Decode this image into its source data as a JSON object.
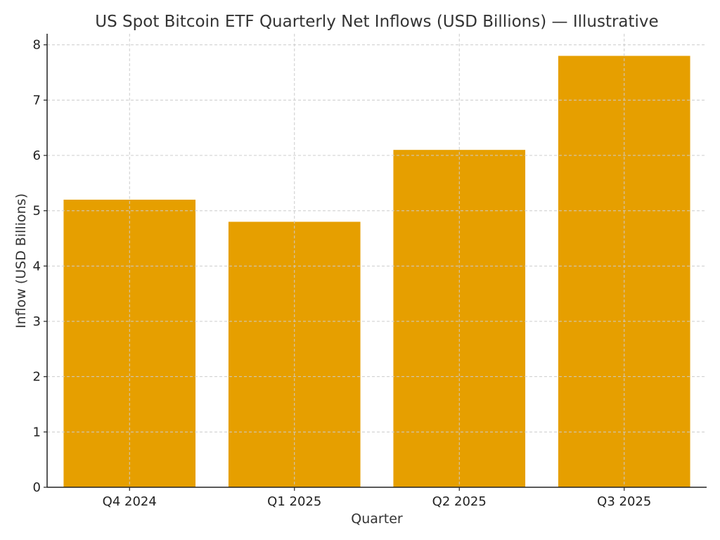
{
  "chart_data": {
    "type": "bar",
    "title": "US Spot Bitcoin ETF Quarterly Net Inflows (USD Billions) — Illustrative",
    "xlabel": "Quarter",
    "ylabel": "Inflow (USD Billions)",
    "categories": [
      "Q4 2024",
      "Q1 2025",
      "Q2 2025",
      "Q3 2025"
    ],
    "values": [
      5.2,
      4.8,
      6.1,
      7.8
    ],
    "ylim": [
      0,
      8.2
    ],
    "yticks": [
      0,
      1,
      2,
      3,
      4,
      5,
      6,
      7,
      8
    ],
    "grid": true,
    "bar_color": "#E69F00"
  }
}
